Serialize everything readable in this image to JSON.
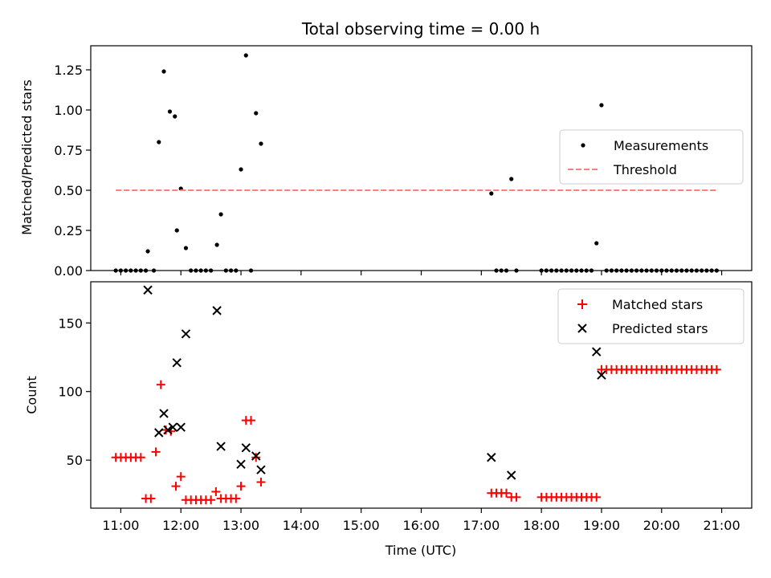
{
  "chart_data": [
    {
      "type": "scatter",
      "title": "Total observing time = 0.00 h",
      "xlabel": "",
      "ylabel": "Matched/Predicted stars",
      "xlim": [
        "10:30",
        "21:30"
      ],
      "ylim": [
        0,
        1.4
      ],
      "yticks": [
        0.0,
        0.25,
        0.5,
        0.75,
        1.0,
        1.25
      ],
      "ytick_labels": [
        "0.00",
        "0.25",
        "0.50",
        "0.75",
        "1.00",
        "1.25"
      ],
      "legend_position": "right",
      "series": [
        {
          "name": "Measurements",
          "kind": "scatter",
          "marker": "dot",
          "color": "#000000",
          "points": [
            [
              "10:55",
              0
            ],
            [
              "11:00",
              0
            ],
            [
              "11:05",
              0
            ],
            [
              "11:10",
              0
            ],
            [
              "11:15",
              0
            ],
            [
              "11:20",
              0
            ],
            [
              "11:25",
              0
            ],
            [
              "11:27",
              0.12
            ],
            [
              "11:33",
              0
            ],
            [
              "11:38",
              0.8
            ],
            [
              "11:43",
              1.24
            ],
            [
              "11:49",
              0.99
            ],
            [
              "11:54",
              0.96
            ],
            [
              "11:56",
              0.25
            ],
            [
              "12:00",
              0.51
            ],
            [
              "12:05",
              0.14
            ],
            [
              "12:10",
              0
            ],
            [
              "12:15",
              0
            ],
            [
              "12:20",
              0
            ],
            [
              "12:25",
              0
            ],
            [
              "12:30",
              0
            ],
            [
              "12:36",
              0.16
            ],
            [
              "12:40",
              0.35
            ],
            [
              "12:45",
              0
            ],
            [
              "12:50",
              0
            ],
            [
              "12:55",
              0
            ],
            [
              "13:00",
              0.63
            ],
            [
              "13:05",
              1.34
            ],
            [
              "13:10",
              0
            ],
            [
              "13:15",
              0.98
            ],
            [
              "13:20",
              0.79
            ],
            [
              "17:10",
              0.48
            ],
            [
              "17:15",
              0
            ],
            [
              "17:20",
              0
            ],
            [
              "17:25",
              0
            ],
            [
              "17:30",
              0.57
            ],
            [
              "17:35",
              0
            ],
            [
              "18:00",
              0
            ],
            [
              "18:05",
              0
            ],
            [
              "18:10",
              0
            ],
            [
              "18:15",
              0
            ],
            [
              "18:20",
              0
            ],
            [
              "18:25",
              0
            ],
            [
              "18:30",
              0
            ],
            [
              "18:35",
              0
            ],
            [
              "18:40",
              0
            ],
            [
              "18:45",
              0
            ],
            [
              "18:50",
              0
            ],
            [
              "18:55",
              0.17
            ],
            [
              "19:00",
              1.03
            ],
            [
              "19:05",
              0
            ],
            [
              "19:10",
              0
            ],
            [
              "19:15",
              0
            ],
            [
              "19:20",
              0
            ],
            [
              "19:25",
              0
            ],
            [
              "19:30",
              0
            ],
            [
              "19:35",
              0
            ],
            [
              "19:40",
              0
            ],
            [
              "19:45",
              0
            ],
            [
              "19:50",
              0
            ],
            [
              "19:55",
              0
            ],
            [
              "20:00",
              0
            ],
            [
              "20:05",
              0
            ],
            [
              "20:10",
              0
            ],
            [
              "20:15",
              0
            ],
            [
              "20:20",
              0
            ],
            [
              "20:25",
              0
            ],
            [
              "20:30",
              0
            ],
            [
              "20:35",
              0
            ],
            [
              "20:40",
              0
            ],
            [
              "20:45",
              0
            ],
            [
              "20:50",
              0
            ],
            [
              "20:55",
              0
            ]
          ]
        },
        {
          "name": "Threshold",
          "kind": "line",
          "dash": "dashed",
          "color": "#ff7f7f",
          "points": [
            [
              "10:55",
              0.5
            ],
            [
              "20:55",
              0.5
            ]
          ]
        }
      ]
    },
    {
      "type": "scatter",
      "title": "",
      "xlabel": "Time (UTC)",
      "ylabel": "Count",
      "xlim": [
        "10:30",
        "21:30"
      ],
      "ylim": [
        15,
        180
      ],
      "yticks": [
        50,
        100,
        150
      ],
      "ytick_labels": [
        "50",
        "100",
        "150"
      ],
      "xticks": [
        "11:00",
        "12:00",
        "13:00",
        "14:00",
        "15:00",
        "16:00",
        "17:00",
        "18:00",
        "19:00",
        "20:00",
        "21:00"
      ],
      "legend_position": "top-right",
      "series": [
        {
          "name": "Matched stars",
          "kind": "scatter",
          "marker": "plus",
          "color": "#ff0000",
          "points": [
            [
              "10:55",
              52
            ],
            [
              "11:00",
              52
            ],
            [
              "11:05",
              52
            ],
            [
              "11:10",
              52
            ],
            [
              "11:15",
              52
            ],
            [
              "11:20",
              52
            ],
            [
              "11:25",
              22
            ],
            [
              "11:30",
              22
            ],
            [
              "11:35",
              56
            ],
            [
              "11:40",
              105
            ],
            [
              "11:45",
              72
            ],
            [
              "11:50",
              71
            ],
            [
              "11:55",
              31
            ],
            [
              "12:00",
              38
            ],
            [
              "12:05",
              21
            ],
            [
              "12:10",
              21
            ],
            [
              "12:15",
              21
            ],
            [
              "12:20",
              21
            ],
            [
              "12:25",
              21
            ],
            [
              "12:30",
              21
            ],
            [
              "12:35",
              27
            ],
            [
              "12:40",
              22
            ],
            [
              "12:45",
              22
            ],
            [
              "12:50",
              22
            ],
            [
              "12:55",
              22
            ],
            [
              "13:00",
              31
            ],
            [
              "13:05",
              79
            ],
            [
              "13:10",
              79
            ],
            [
              "13:15",
              52
            ],
            [
              "13:20",
              34
            ],
            [
              "17:10",
              26
            ],
            [
              "17:15",
              26
            ],
            [
              "17:20",
              26
            ],
            [
              "17:25",
              26
            ],
            [
              "17:30",
              23
            ],
            [
              "17:35",
              23
            ],
            [
              "18:00",
              23
            ],
            [
              "18:05",
              23
            ],
            [
              "18:10",
              23
            ],
            [
              "18:15",
              23
            ],
            [
              "18:20",
              23
            ],
            [
              "18:25",
              23
            ],
            [
              "18:30",
              23
            ],
            [
              "18:35",
              23
            ],
            [
              "18:40",
              23
            ],
            [
              "18:45",
              23
            ],
            [
              "18:50",
              23
            ],
            [
              "18:55",
              23
            ],
            [
              "19:00",
              116
            ],
            [
              "19:05",
              116
            ],
            [
              "19:10",
              116
            ],
            [
              "19:15",
              116
            ],
            [
              "19:20",
              116
            ],
            [
              "19:25",
              116
            ],
            [
              "19:30",
              116
            ],
            [
              "19:35",
              116
            ],
            [
              "19:40",
              116
            ],
            [
              "19:45",
              116
            ],
            [
              "19:50",
              116
            ],
            [
              "19:55",
              116
            ],
            [
              "20:00",
              116
            ],
            [
              "20:05",
              116
            ],
            [
              "20:10",
              116
            ],
            [
              "20:15",
              116
            ],
            [
              "20:20",
              116
            ],
            [
              "20:25",
              116
            ],
            [
              "20:30",
              116
            ],
            [
              "20:35",
              116
            ],
            [
              "20:40",
              116
            ],
            [
              "20:45",
              116
            ],
            [
              "20:50",
              116
            ],
            [
              "20:55",
              116
            ]
          ]
        },
        {
          "name": "Predicted stars",
          "kind": "scatter",
          "marker": "x",
          "color": "#000000",
          "points": [
            [
              "11:27",
              174
            ],
            [
              "11:38",
              70
            ],
            [
              "11:43",
              84
            ],
            [
              "11:47",
              72
            ],
            [
              "11:52",
              74
            ],
            [
              "11:56",
              121
            ],
            [
              "12:00",
              74
            ],
            [
              "12:05",
              142
            ],
            [
              "12:36",
              159
            ],
            [
              "12:40",
              60
            ],
            [
              "13:00",
              47
            ],
            [
              "13:05",
              59
            ],
            [
              "13:15",
              53
            ],
            [
              "13:20",
              43
            ],
            [
              "17:10",
              52
            ],
            [
              "17:30",
              39
            ],
            [
              "18:55",
              129
            ],
            [
              "19:00",
              112
            ]
          ]
        }
      ]
    }
  ]
}
